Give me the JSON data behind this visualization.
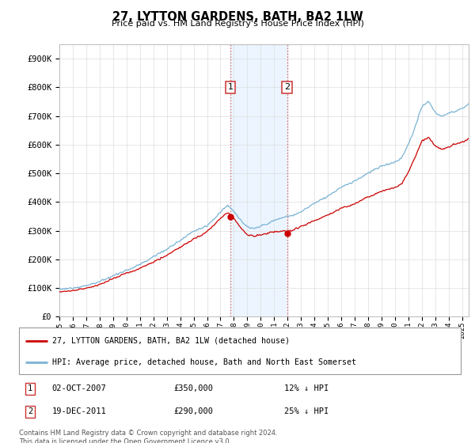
{
  "title": "27, LYTTON GARDENS, BATH, BA2 1LW",
  "subtitle": "Price paid vs. HM Land Registry's House Price Index (HPI)",
  "background_color": "#ffffff",
  "grid_color": "#dddddd",
  "hpi_color": "#7ab3d4",
  "price_color": "#cc0000",
  "vline_color": "#dd6666",
  "shade_color": "#ddeeff",
  "shade_alpha": 0.55,
  "sale1_date": 2007.75,
  "sale1_price": 350000,
  "sale2_date": 2011.97,
  "sale2_price": 290000,
  "legend_label1": "27, LYTTON GARDENS, BATH, BA2 1LW (detached house)",
  "legend_label2": "HPI: Average price, detached house, Bath and North East Somerset",
  "table_row1": [
    "1",
    "02-OCT-2007",
    "£350,000",
    "12% ↓ HPI"
  ],
  "table_row2": [
    "2",
    "19-DEC-2011",
    "£290,000",
    "25% ↓ HPI"
  ],
  "footer": "Contains HM Land Registry data © Crown copyright and database right 2024.\nThis data is licensed under the Open Government Licence v3.0.",
  "ylim_max": 950000,
  "ylim_min": 0,
  "xmin": 1995,
  "xmax": 2025.5
}
